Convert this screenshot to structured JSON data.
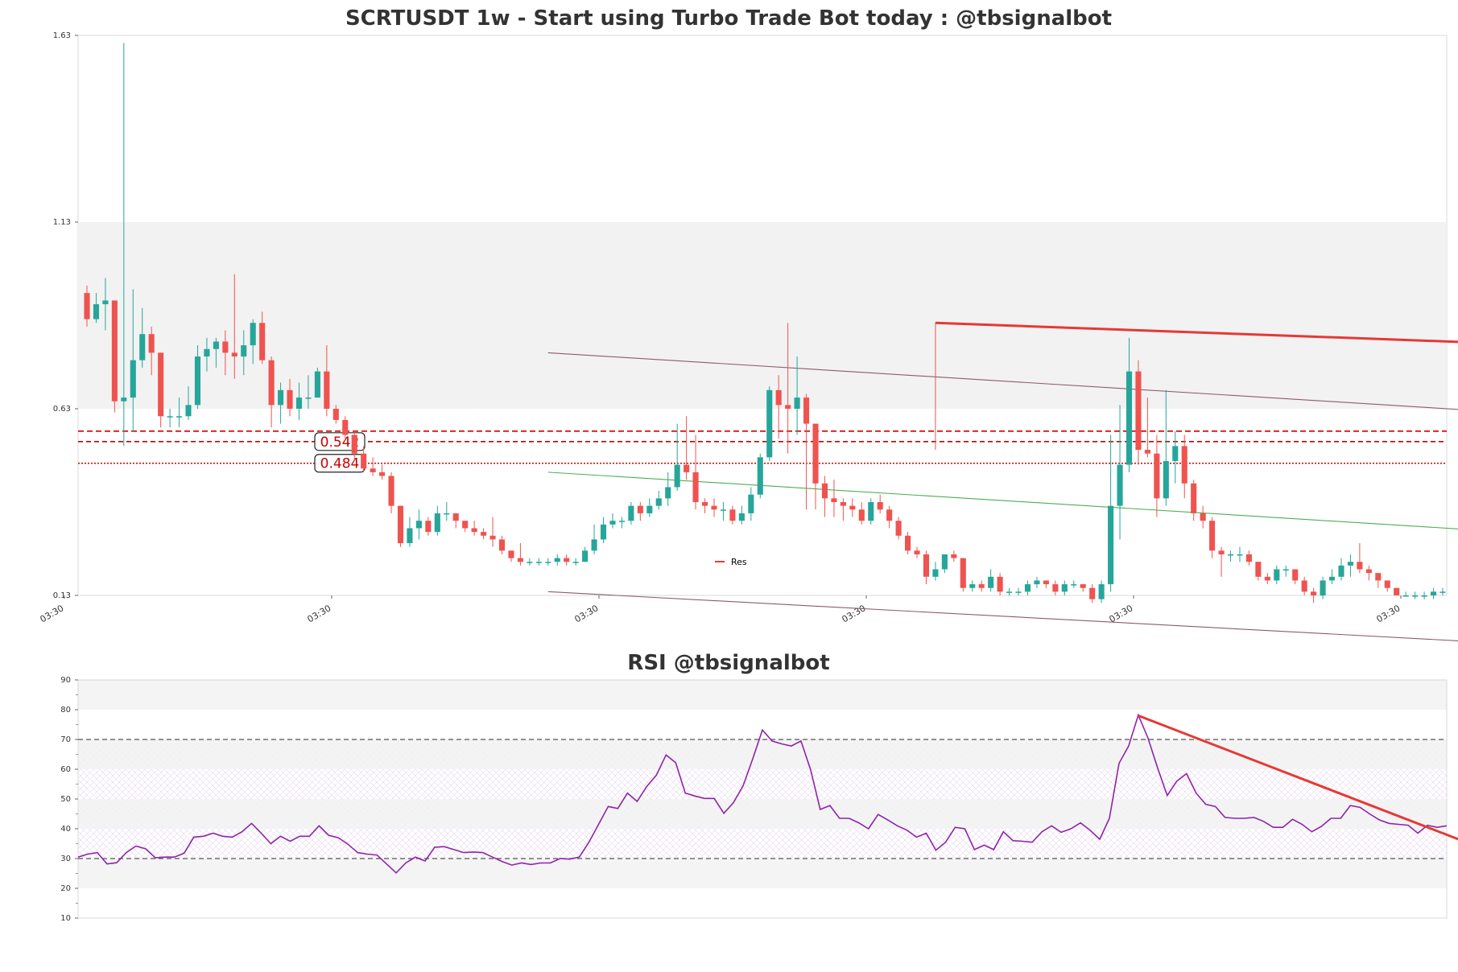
{
  "chart_data": [
    {
      "type": "candlestick",
      "title": "SCRTUSDT 1w - Start using Turbo Trade Bot today : @tbsignalbot",
      "ylim": [
        0.13,
        1.63
      ],
      "y_ticks": [
        "1.63",
        "1.13",
        "0.63",
        "0.13"
      ],
      "x_ticks": [
        "03:30",
        "03:30",
        "03:30",
        "03:30",
        "03:30",
        "03:30"
      ],
      "shaded_zone": [
        0.63,
        1.13
      ],
      "levels": [
        {
          "value": 0.542,
          "label": "0.542",
          "style": "dashed",
          "color": "#cc0000"
        },
        {
          "value": 0.484,
          "label": "0.484",
          "style": "dotted",
          "color": "#cc0000"
        }
      ],
      "extra_dashed_level": 0.57,
      "colors": {
        "up": "#26a69a",
        "down": "#ef5350",
        "resistance": "#e53935",
        "channel": "#8d5b6b",
        "mid_channel": "#4caf50"
      },
      "legend": [
        {
          "label": "Res",
          "color": "#e53935"
        }
      ],
      "candles": [
        [
          0.94,
          0.87,
          0.96,
          0.85
        ],
        [
          0.87,
          0.91,
          0.94,
          0.86
        ],
        [
          0.91,
          0.92,
          0.98,
          0.84
        ],
        [
          0.92,
          0.65,
          0.92,
          0.62
        ],
        [
          0.65,
          0.66,
          1.61,
          0.53
        ],
        [
          0.66,
          0.76,
          0.95,
          0.57
        ],
        [
          0.76,
          0.83,
          0.9,
          0.74
        ],
        [
          0.83,
          0.78,
          0.85,
          0.72
        ],
        [
          0.78,
          0.61,
          0.78,
          0.58
        ],
        [
          0.61,
          0.61,
          0.63,
          0.58
        ],
        [
          0.61,
          0.61,
          0.66,
          0.58
        ],
        [
          0.61,
          0.64,
          0.69,
          0.6
        ],
        [
          0.64,
          0.77,
          0.8,
          0.63
        ],
        [
          0.77,
          0.79,
          0.82,
          0.73
        ],
        [
          0.79,
          0.81,
          0.82,
          0.74
        ],
        [
          0.81,
          0.78,
          0.84,
          0.72
        ],
        [
          0.78,
          0.77,
          0.99,
          0.71
        ],
        [
          0.77,
          0.8,
          0.84,
          0.72
        ],
        [
          0.8,
          0.86,
          0.87,
          0.75
        ],
        [
          0.86,
          0.76,
          0.89,
          0.75
        ],
        [
          0.76,
          0.64,
          0.77,
          0.58
        ],
        [
          0.64,
          0.68,
          0.7,
          0.59
        ],
        [
          0.68,
          0.63,
          0.71,
          0.61
        ],
        [
          0.63,
          0.66,
          0.7,
          0.6
        ],
        [
          0.66,
          0.66,
          0.72,
          0.63
        ],
        [
          0.66,
          0.73,
          0.74,
          0.66
        ],
        [
          0.73,
          0.63,
          0.8,
          0.61
        ],
        [
          0.63,
          0.6,
          0.64,
          0.59
        ],
        [
          0.6,
          0.56,
          0.61,
          0.55
        ],
        [
          0.56,
          0.51,
          0.57,
          0.49
        ],
        [
          0.51,
          0.47,
          0.53,
          0.46
        ],
        [
          0.47,
          0.46,
          0.5,
          0.45
        ],
        [
          0.46,
          0.45,
          0.48,
          0.44
        ],
        [
          0.45,
          0.37,
          0.46,
          0.35
        ],
        [
          0.37,
          0.27,
          0.37,
          0.26
        ],
        [
          0.27,
          0.31,
          0.34,
          0.26
        ],
        [
          0.31,
          0.33,
          0.36,
          0.28
        ],
        [
          0.33,
          0.3,
          0.34,
          0.29
        ],
        [
          0.3,
          0.35,
          0.37,
          0.29
        ],
        [
          0.35,
          0.35,
          0.38,
          0.33
        ],
        [
          0.35,
          0.33,
          0.35,
          0.31
        ],
        [
          0.33,
          0.31,
          0.32,
          0.3
        ],
        [
          0.31,
          0.3,
          0.33,
          0.29
        ],
        [
          0.3,
          0.29,
          0.31,
          0.28
        ],
        [
          0.29,
          0.28,
          0.34,
          0.26
        ],
        [
          0.28,
          0.25,
          0.29,
          0.24
        ],
        [
          0.25,
          0.23,
          0.25,
          0.22
        ],
        [
          0.23,
          0.22,
          0.27,
          0.21
        ],
        [
          0.22,
          0.22,
          0.23,
          0.21
        ],
        [
          0.22,
          0.22,
          0.23,
          0.21
        ],
        [
          0.22,
          0.22,
          0.23,
          0.21
        ],
        [
          0.22,
          0.23,
          0.24,
          0.21
        ],
        [
          0.23,
          0.22,
          0.24,
          0.21
        ],
        [
          0.22,
          0.22,
          0.23,
          0.21
        ],
        [
          0.22,
          0.25,
          0.26,
          0.22
        ],
        [
          0.25,
          0.28,
          0.32,
          0.24
        ],
        [
          0.28,
          0.32,
          0.34,
          0.27
        ],
        [
          0.32,
          0.33,
          0.35,
          0.31
        ],
        [
          0.33,
          0.33,
          0.34,
          0.31
        ],
        [
          0.33,
          0.37,
          0.38,
          0.32
        ],
        [
          0.37,
          0.35,
          0.38,
          0.33
        ],
        [
          0.35,
          0.37,
          0.39,
          0.34
        ],
        [
          0.37,
          0.39,
          0.41,
          0.36
        ],
        [
          0.39,
          0.42,
          0.46,
          0.37
        ],
        [
          0.42,
          0.48,
          0.59,
          0.41
        ],
        [
          0.48,
          0.46,
          0.61,
          0.44
        ],
        [
          0.46,
          0.38,
          0.56,
          0.36
        ],
        [
          0.38,
          0.37,
          0.39,
          0.35
        ],
        [
          0.37,
          0.36,
          0.39,
          0.34
        ],
        [
          0.36,
          0.36,
          0.38,
          0.33
        ],
        [
          0.36,
          0.33,
          0.37,
          0.32
        ],
        [
          0.33,
          0.35,
          0.37,
          0.32
        ],
        [
          0.35,
          0.4,
          0.42,
          0.33
        ],
        [
          0.4,
          0.5,
          0.51,
          0.39
        ],
        [
          0.5,
          0.68,
          0.69,
          0.49
        ],
        [
          0.68,
          0.64,
          0.72,
          0.55
        ],
        [
          0.64,
          0.63,
          0.86,
          0.51
        ],
        [
          0.63,
          0.66,
          0.77,
          0.56
        ],
        [
          0.66,
          0.59,
          0.67,
          0.36
        ],
        [
          0.59,
          0.43,
          0.59,
          0.36
        ],
        [
          0.43,
          0.39,
          0.45,
          0.34
        ],
        [
          0.39,
          0.38,
          0.44,
          0.34
        ],
        [
          0.38,
          0.37,
          0.39,
          0.33
        ],
        [
          0.37,
          0.36,
          0.39,
          0.34
        ],
        [
          0.36,
          0.33,
          0.38,
          0.32
        ],
        [
          0.33,
          0.38,
          0.39,
          0.32
        ],
        [
          0.38,
          0.36,
          0.4,
          0.35
        ],
        [
          0.36,
          0.33,
          0.37,
          0.31
        ],
        [
          0.33,
          0.29,
          0.34,
          0.28
        ],
        [
          0.29,
          0.25,
          0.3,
          0.24
        ],
        [
          0.25,
          0.24,
          0.26,
          0.23
        ],
        [
          0.24,
          0.18,
          0.25,
          0.16
        ],
        [
          0.18,
          0.2,
          0.22,
          0.17
        ],
        [
          0.2,
          0.24,
          0.24,
          0.19
        ],
        [
          0.24,
          0.23,
          0.25,
          0.22
        ],
        [
          0.23,
          0.15,
          0.23,
          0.14
        ],
        [
          0.15,
          0.16,
          0.17,
          0.14
        ],
        [
          0.16,
          0.15,
          0.17,
          0.14
        ],
        [
          0.15,
          0.18,
          0.2,
          0.14
        ],
        [
          0.18,
          0.14,
          0.19,
          0.13
        ],
        [
          0.14,
          0.14,
          0.15,
          0.13
        ],
        [
          0.14,
          0.14,
          0.15,
          0.13
        ],
        [
          0.14,
          0.16,
          0.17,
          0.13
        ],
        [
          0.16,
          0.17,
          0.18,
          0.15
        ],
        [
          0.17,
          0.16,
          0.17,
          0.15
        ],
        [
          0.16,
          0.14,
          0.17,
          0.13
        ],
        [
          0.14,
          0.16,
          0.17,
          0.13
        ],
        [
          0.16,
          0.16,
          0.17,
          0.15
        ],
        [
          0.16,
          0.15,
          0.16,
          0.14
        ],
        [
          0.15,
          0.12,
          0.16,
          0.11
        ],
        [
          0.12,
          0.16,
          0.17,
          0.11
        ],
        [
          0.16,
          0.37,
          0.56,
          0.14
        ],
        [
          0.37,
          0.48,
          0.64,
          0.28
        ],
        [
          0.48,
          0.73,
          0.82,
          0.46
        ],
        [
          0.73,
          0.52,
          0.76,
          0.48
        ],
        [
          0.52,
          0.51,
          0.66,
          0.5
        ],
        [
          0.51,
          0.39,
          0.56,
          0.34
        ],
        [
          0.39,
          0.49,
          0.68,
          0.37
        ],
        [
          0.49,
          0.53,
          0.57,
          0.43
        ],
        [
          0.53,
          0.43,
          0.56,
          0.39
        ],
        [
          0.43,
          0.35,
          0.44,
          0.33
        ],
        [
          0.35,
          0.33,
          0.37,
          0.31
        ],
        [
          0.33,
          0.25,
          0.34,
          0.23
        ],
        [
          0.25,
          0.24,
          0.26,
          0.18
        ],
        [
          0.24,
          0.24,
          0.25,
          0.22
        ],
        [
          0.24,
          0.24,
          0.26,
          0.22
        ],
        [
          0.24,
          0.22,
          0.25,
          0.21
        ],
        [
          0.22,
          0.18,
          0.22,
          0.17
        ],
        [
          0.18,
          0.17,
          0.19,
          0.16
        ],
        [
          0.17,
          0.2,
          0.21,
          0.16
        ],
        [
          0.2,
          0.2,
          0.21,
          0.18
        ],
        [
          0.2,
          0.17,
          0.2,
          0.16
        ],
        [
          0.17,
          0.14,
          0.18,
          0.13
        ],
        [
          0.14,
          0.13,
          0.15,
          0.11
        ],
        [
          0.13,
          0.17,
          0.18,
          0.12
        ],
        [
          0.17,
          0.18,
          0.2,
          0.16
        ],
        [
          0.18,
          0.21,
          0.23,
          0.17
        ],
        [
          0.21,
          0.22,
          0.24,
          0.18
        ],
        [
          0.22,
          0.2,
          0.27,
          0.19
        ],
        [
          0.2,
          0.19,
          0.21,
          0.17
        ],
        [
          0.19,
          0.17,
          0.19,
          0.15
        ],
        [
          0.17,
          0.15,
          0.17,
          0.14
        ],
        [
          0.15,
          0.13,
          0.15,
          0.13
        ],
        [
          0.13,
          0.13,
          0.14,
          0.13
        ],
        [
          0.13,
          0.13,
          0.14,
          0.12
        ],
        [
          0.13,
          0.13,
          0.14,
          0.12
        ],
        [
          0.13,
          0.14,
          0.15,
          0.12
        ],
        [
          0.14,
          0.14,
          0.15,
          0.13
        ]
      ],
      "resistance_line": {
        "from": {
          "index": 92,
          "value": 0.86
        },
        "to": {
          "index": 170,
          "value": 0.79
        },
        "label": "Res"
      },
      "channel_upper": {
        "from": {
          "index": 50,
          "value": 0.78
        },
        "to": {
          "index": 167,
          "value": 0.6
        }
      },
      "channel_lower": {
        "from": {
          "index": 50,
          "value": 0.14
        },
        "to": {
          "index": 155,
          "value": 0.0
        }
      },
      "channel_mid": {
        "from": {
          "index": 50,
          "value": 0.46
        },
        "to": {
          "index": 167,
          "value": 0.28
        }
      }
    },
    {
      "type": "line",
      "title": "RSI @tbsignalbot",
      "ylim": [
        10,
        90
      ],
      "y_ticks": [
        "90",
        "80",
        "70",
        "60",
        "50",
        "40",
        "30",
        "20",
        "10"
      ],
      "overbought": 70,
      "oversold": 30,
      "shaded_bands": [
        [
          20,
          30
        ],
        [
          40,
          50
        ],
        [
          60,
          70
        ],
        [
          80,
          90
        ]
      ],
      "series": [
        {
          "color": "#8e24aa",
          "values": [
            30.5,
            31.5,
            32.0,
            28.2,
            28.6,
            32.0,
            34.2,
            33.3,
            30.3,
            30.5,
            30.5,
            31.8,
            37.2,
            37.5,
            38.5,
            37.5,
            37.2,
            39.0,
            41.8,
            38.5,
            35.0,
            37.5,
            35.8,
            37.5,
            37.5,
            41.0,
            37.8,
            37.0,
            34.8,
            32.0,
            31.5,
            31.2,
            28.2,
            25.2,
            28.5,
            30.5,
            29.2,
            33.8,
            34.0,
            33.0,
            32.0,
            32.2,
            32.0,
            30.5,
            29.0,
            27.8,
            28.5,
            28.0,
            28.5,
            28.5,
            30.0,
            29.8,
            30.5,
            35.5,
            41.5,
            47.5,
            46.8,
            52.0,
            49.2,
            54.2,
            58.0,
            64.8,
            62.2,
            52.0,
            51.0,
            50.2,
            50.2,
            45.2,
            48.8,
            54.5,
            63.5,
            73.2,
            69.5,
            68.5,
            67.8,
            69.5,
            59.8,
            46.5,
            47.8,
            43.5,
            43.5,
            42.0,
            40.0,
            44.8,
            43.0,
            41.0,
            39.5,
            37.2,
            38.5,
            32.8,
            35.5,
            40.5,
            40.0,
            33.0,
            34.5,
            33.0,
            39.0,
            36.0,
            35.8,
            35.5,
            39.0,
            41.0,
            38.8,
            40.0,
            42.0,
            39.5,
            36.5,
            43.5,
            62.0,
            67.8,
            78.2,
            70.5,
            60.5,
            51.2,
            56.0,
            58.5,
            52.0,
            48.2,
            47.5,
            43.8,
            43.5,
            43.5,
            43.8,
            42.5,
            40.5,
            40.5,
            43.2,
            41.5,
            39.0,
            40.8,
            43.5,
            43.5,
            47.8,
            47.2,
            45.0,
            43.0,
            41.8,
            41.5,
            41.2,
            38.5,
            41.2,
            40.5,
            41.0
          ]
        }
      ],
      "trend_line": {
        "from": {
          "index": 110,
          "value": 78
        },
        "to": {
          "index": 144,
          "value": 35.5
        }
      }
    }
  ]
}
